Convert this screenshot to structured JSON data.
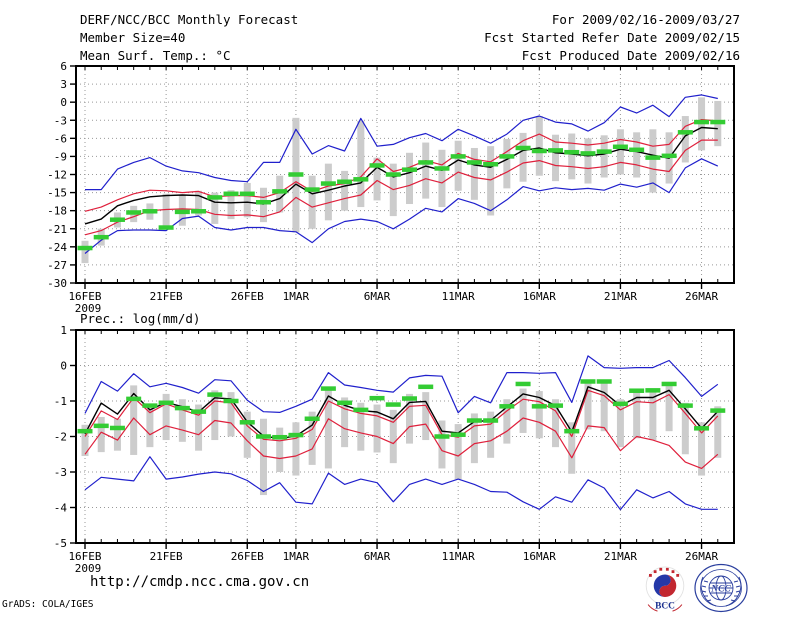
{
  "header": {
    "title": "DERF/NCC/BCC Monthly Forecast",
    "member_size": "Member Size=40",
    "for_range": "For 2009/02/16-2009/03/27",
    "refer_date": "Fcst Started Refer Date 2009/02/15",
    "produced_date": "Fcst Produced Date 2009/02/16"
  },
  "footer": {
    "url": "http://cmdp.ncc.cma.gov.cn",
    "credit": "GrADS: COLA/IGES",
    "logos": [
      {
        "name": "bcc-logo",
        "label": "BCC"
      },
      {
        "name": "ncc-logo",
        "label": "NCC"
      }
    ]
  },
  "colors": {
    "line_blue": "#2020cc",
    "line_red": "#df203c",
    "line_black": "#000000",
    "obs_green": "#33cc33",
    "bar_gray": "#cccccc",
    "grid": "#999999",
    "frame": "#000000"
  },
  "chart_data": [
    {
      "type": "line",
      "title": "Mean Surf. Temp.: °C",
      "xlabel": "",
      "ylabel": "",
      "ylim": [
        -30,
        6
      ],
      "yticks": [
        6,
        3,
        0,
        -3,
        -6,
        -9,
        -12,
        -15,
        -18,
        -21,
        -24,
        -27,
        -30
      ],
      "x_count": 40,
      "xticks": [
        {
          "day": 0,
          "label": "16FEB",
          "sub": "2009"
        },
        {
          "day": 5,
          "label": "21FEB"
        },
        {
          "day": 10,
          "label": "26FEB"
        },
        {
          "day": 13,
          "label": "1MAR"
        },
        {
          "day": 18,
          "label": "6MAR"
        },
        {
          "day": 23,
          "label": "11MAR"
        },
        {
          "day": 28,
          "label": "16MAR"
        },
        {
          "day": 33,
          "label": "21MAR"
        },
        {
          "day": 38,
          "label": "26MAR"
        }
      ],
      "grid": true,
      "legend": "none",
      "series": [
        {
          "name": "ensemble-max",
          "color_key": "line_blue",
          "values": [
            -14.5,
            -14.5,
            -11.1,
            -10.0,
            -9.2,
            -10.6,
            -11.4,
            -11.7,
            -12.5,
            -13.0,
            -13.2,
            -10.0,
            -10.0,
            -4.5,
            -8.6,
            -7.2,
            -8.1,
            -2.7,
            -7.3,
            -7.0,
            -5.9,
            -5.2,
            -6.4,
            -4.5,
            -5.6,
            -6.8,
            -5.3,
            -3.0,
            -2.3,
            -3.3,
            -3.6,
            -4.8,
            -3.4,
            -0.8,
            -1.8,
            -0.5,
            -2.4,
            0.8,
            1.2,
            0.6
          ]
        },
        {
          "name": "spread-upper",
          "color_key": "line_red",
          "values": [
            -18.1,
            -17.4,
            -16.2,
            -15.2,
            -14.6,
            -14.7,
            -15.0,
            -14.8,
            -15.7,
            -15.5,
            -15.5,
            -15.8,
            -15.0,
            -13.2,
            -14.8,
            -13.9,
            -13.5,
            -12.4,
            -9.4,
            -11.5,
            -10.8,
            -9.7,
            -10.4,
            -8.5,
            -9.5,
            -9.9,
            -8.2,
            -6.4,
            -5.3,
            -6.6,
            -6.8,
            -7.1,
            -6.8,
            -6.2,
            -6.6,
            -7.3,
            -7.0,
            -4.0,
            -2.9,
            -3.1
          ]
        },
        {
          "name": "ensemble-mean",
          "color_key": "line_black",
          "values": [
            -20.2,
            -19.4,
            -17.2,
            -16.3,
            -15.7,
            -15.5,
            -15.4,
            -15.5,
            -16.6,
            -16.7,
            -16.6,
            -16.9,
            -16.0,
            -13.6,
            -15.2,
            -14.6,
            -13.9,
            -13.4,
            -10.8,
            -12.4,
            -11.7,
            -10.6,
            -11.3,
            -9.6,
            -10.4,
            -10.8,
            -9.5,
            -8.0,
            -7.6,
            -8.4,
            -8.6,
            -8.9,
            -8.6,
            -7.8,
            -8.2,
            -8.8,
            -9.3,
            -5.6,
            -4.2,
            -4.4
          ]
        },
        {
          "name": "spread-lower",
          "color_key": "line_red",
          "values": [
            -22.0,
            -21.3,
            -19.9,
            -19.0,
            -18.0,
            -17.8,
            -17.7,
            -17.8,
            -18.6,
            -18.8,
            -18.7,
            -19.0,
            -18.2,
            -15.8,
            -17.4,
            -16.7,
            -16.0,
            -15.4,
            -13.0,
            -14.5,
            -13.8,
            -12.7,
            -13.4,
            -11.6,
            -12.5,
            -12.9,
            -11.6,
            -10.1,
            -9.7,
            -10.5,
            -10.7,
            -11.0,
            -10.7,
            -10.0,
            -10.4,
            -11.1,
            -11.5,
            -8.0,
            -6.3,
            -6.3
          ]
        },
        {
          "name": "ensemble-min",
          "color_key": "line_blue",
          "values": [
            -25.1,
            -22.9,
            -21.3,
            -21.2,
            -21.2,
            -21.3,
            -19.3,
            -18.9,
            -20.8,
            -21.2,
            -20.8,
            -20.8,
            -21.3,
            -21.5,
            -23.3,
            -21.0,
            -19.8,
            -19.4,
            -19.8,
            -21.0,
            -19.4,
            -17.6,
            -18.2,
            -16.0,
            -16.8,
            -18.0,
            -16.2,
            -14.0,
            -14.7,
            -14.2,
            -14.5,
            -14.3,
            -14.6,
            -13.6,
            -14.1,
            -13.4,
            -15.0,
            -10.9,
            -9.4,
            -10.6
          ]
        },
        {
          "name": "observation",
          "color_key": "obs_green",
          "style": "dashes",
          "values": [
            -24.2,
            -22.4,
            -19.5,
            -18.3,
            -18.1,
            -20.8,
            -18.2,
            -18.1,
            -15.8,
            -15.2,
            -15.2,
            -16.6,
            -14.8,
            -12.0,
            -14.5,
            -13.5,
            -13.2,
            -12.8,
            -10.5,
            -12.0,
            -11.2,
            -10.0,
            -11.0,
            -9.0,
            -10.0,
            -10.3,
            -9.0,
            -7.6,
            -8.1,
            -8.0,
            -8.3,
            -8.5,
            -8.2,
            -7.4,
            -7.9,
            -9.2,
            -8.9,
            -5.0,
            -3.3,
            -3.3
          ]
        }
      ],
      "bars": {
        "name": "member-spread-bar",
        "color_key": "bar_gray",
        "ranges": [
          [
            -26.7,
            -23.0
          ],
          [
            -23.8,
            -21.0
          ],
          [
            -20.8,
            -18.3
          ],
          [
            -19.9,
            -17.2
          ],
          [
            -19.5,
            -16.8
          ],
          [
            -21.0,
            -15.2
          ],
          [
            -20.5,
            -15.5
          ],
          [
            -18.8,
            -14.7
          ],
          [
            -20.2,
            -15.0
          ],
          [
            -19.4,
            -14.6
          ],
          [
            -19.1,
            -13.4
          ],
          [
            -19.9,
            -14.2
          ],
          [
            -18.3,
            -12.2
          ],
          [
            -21.6,
            -2.6
          ],
          [
            -21.0,
            -12.2
          ],
          [
            -19.6,
            -10.2
          ],
          [
            -18.0,
            -11.4
          ],
          [
            -17.4,
            -3.1
          ],
          [
            -16.3,
            -9.2
          ],
          [
            -18.9,
            -10.2
          ],
          [
            -16.9,
            -8.4
          ],
          [
            -16.0,
            -6.7
          ],
          [
            -17.4,
            -7.9
          ],
          [
            -14.7,
            -6.4
          ],
          [
            -16.2,
            -7.6
          ],
          [
            -18.8,
            -7.3
          ],
          [
            -14.3,
            -6.1
          ],
          [
            -13.2,
            -5.1
          ],
          [
            -12.2,
            -2.3
          ],
          [
            -13.1,
            -5.4
          ],
          [
            -12.8,
            -5.2
          ],
          [
            -13.5,
            -6.0
          ],
          [
            -12.5,
            -5.5
          ],
          [
            -12.0,
            -4.5
          ],
          [
            -12.5,
            -5.0
          ],
          [
            -15.0,
            -4.5
          ],
          [
            -13.5,
            -5.0
          ],
          [
            -10.0,
            -2.3
          ],
          [
            -8.0,
            0.8
          ],
          [
            -7.3,
            0.2
          ]
        ]
      }
    },
    {
      "type": "line",
      "title": "Prec.: log(mm/d)",
      "xlabel": "",
      "ylabel": "",
      "ylim": [
        -5,
        1
      ],
      "yticks": [
        1,
        0,
        -1,
        -2,
        -3,
        -4,
        -5
      ],
      "x_count": 40,
      "xticks": [
        {
          "day": 0,
          "label": "16FEB",
          "sub": "2009"
        },
        {
          "day": 5,
          "label": "21FEB"
        },
        {
          "day": 10,
          "label": "26FEB"
        },
        {
          "day": 13,
          "label": "1MAR"
        },
        {
          "day": 18,
          "label": "6MAR"
        },
        {
          "day": 23,
          "label": "11MAR"
        },
        {
          "day": 28,
          "label": "16MAR"
        },
        {
          "day": 33,
          "label": "21MAR"
        },
        {
          "day": 38,
          "label": "26MAR"
        }
      ],
      "grid": true,
      "legend": "none",
      "series": [
        {
          "name": "ensemble-max",
          "color_key": "line_blue",
          "values": [
            -1.35,
            -0.45,
            -0.72,
            -0.23,
            -0.6,
            -0.5,
            -0.62,
            -0.78,
            -0.4,
            -0.43,
            -0.98,
            -1.3,
            -1.32,
            -1.15,
            -0.95,
            -0.2,
            -0.55,
            -0.62,
            -0.7,
            -0.75,
            -0.35,
            -0.28,
            -0.3,
            -1.33,
            -0.87,
            -1.05,
            -0.2,
            -0.2,
            -0.22,
            -0.2,
            -1.04,
            0.27,
            -0.06,
            -0.08,
            -0.06,
            -0.06,
            0.14,
            -0.34,
            -0.87,
            -0.53
          ]
        },
        {
          "name": "spread-upper",
          "color_key": "line_red",
          "values": [
            -2.0,
            -1.28,
            -1.52,
            -0.9,
            -1.33,
            -1.08,
            -1.25,
            -1.4,
            -1.0,
            -1.05,
            -1.7,
            -2.08,
            -2.12,
            -2.05,
            -1.8,
            -1.0,
            -1.22,
            -1.35,
            -1.42,
            -1.6,
            -1.15,
            -1.12,
            -1.95,
            -2.02,
            -1.7,
            -1.65,
            -1.28,
            -0.95,
            -1.02,
            -1.28,
            -2.0,
            -0.7,
            -0.85,
            -1.25,
            -1.02,
            -1.05,
            -0.82,
            -1.35,
            -1.9,
            -1.42
          ]
        },
        {
          "name": "ensemble-mean",
          "color_key": "line_black",
          "values": [
            -1.93,
            -1.06,
            -1.37,
            -0.79,
            -1.25,
            -1.04,
            -1.16,
            -1.31,
            -0.91,
            -0.94,
            -1.59,
            -1.99,
            -2.06,
            -1.99,
            -1.68,
            -0.86,
            -1.12,
            -1.27,
            -1.31,
            -1.5,
            -1.04,
            -1.01,
            -1.85,
            -1.9,
            -1.58,
            -1.55,
            -1.17,
            -0.8,
            -0.9,
            -1.13,
            -1.87,
            -0.6,
            -0.76,
            -1.13,
            -0.9,
            -0.9,
            -0.7,
            -1.22,
            -1.77,
            -1.29
          ]
        },
        {
          "name": "spread-lower",
          "color_key": "line_red",
          "values": [
            -2.5,
            -1.88,
            -2.1,
            -1.48,
            -1.95,
            -1.7,
            -1.82,
            -1.95,
            -1.55,
            -1.62,
            -2.12,
            -2.55,
            -2.62,
            -2.55,
            -2.35,
            -1.5,
            -1.78,
            -1.9,
            -2.0,
            -2.2,
            -1.72,
            -1.65,
            -2.4,
            -2.55,
            -2.2,
            -2.12,
            -1.85,
            -1.48,
            -1.6,
            -1.85,
            -2.6,
            -1.7,
            -1.75,
            -2.4,
            -2.0,
            -2.1,
            -2.25,
            -2.72,
            -2.9,
            -2.5
          ]
        },
        {
          "name": "ensemble-min",
          "color_key": "line_blue",
          "values": [
            -3.5,
            -3.15,
            -3.2,
            -3.25,
            -2.57,
            -3.2,
            -3.14,
            -3.06,
            -3.0,
            -3.05,
            -3.24,
            -3.55,
            -3.3,
            -3.85,
            -3.9,
            -3.03,
            -3.35,
            -3.2,
            -3.3,
            -3.84,
            -3.35,
            -3.2,
            -3.35,
            -3.2,
            -3.35,
            -3.55,
            -3.57,
            -3.84,
            -4.05,
            -3.7,
            -3.85,
            -3.22,
            -3.45,
            -4.06,
            -3.5,
            -3.73,
            -3.55,
            -3.9,
            -4.05,
            -4.05
          ]
        },
        {
          "name": "observation",
          "color_key": "obs_green",
          "style": "dashes",
          "values": [
            -1.85,
            -1.7,
            -1.76,
            -0.94,
            -1.13,
            -1.05,
            -1.2,
            -1.3,
            -0.82,
            -1.0,
            -1.6,
            -2.0,
            -2.02,
            -1.96,
            -1.5,
            -0.65,
            -1.05,
            -1.25,
            -0.92,
            -1.1,
            -0.93,
            -0.6,
            -2.0,
            -1.95,
            -1.55,
            -1.55,
            -1.15,
            -0.52,
            -1.15,
            -1.13,
            -1.85,
            -0.45,
            -0.45,
            -1.08,
            -0.71,
            -0.7,
            -0.52,
            -1.13,
            -1.77,
            -1.27
          ]
        }
      ],
      "bars": {
        "name": "member-spread-bar",
        "color_key": "bar_gray",
        "ranges": [
          [
            -2.55,
            -1.67
          ],
          [
            -2.44,
            -1.45
          ],
          [
            -2.4,
            -1.5
          ],
          [
            -2.52,
            -0.56
          ],
          [
            -2.3,
            -1.2
          ],
          [
            -2.1,
            -0.8
          ],
          [
            -2.15,
            -0.95
          ],
          [
            -2.4,
            -1.1
          ],
          [
            -2.1,
            -0.7
          ],
          [
            -2.0,
            -0.75
          ],
          [
            -2.6,
            -1.3
          ],
          [
            -3.65,
            -1.5
          ],
          [
            -3.0,
            -1.75
          ],
          [
            -3.1,
            -1.6
          ],
          [
            -2.8,
            -1.3
          ],
          [
            -2.9,
            -0.6
          ],
          [
            -2.3,
            -0.9
          ],
          [
            -2.4,
            -1.05
          ],
          [
            -2.45,
            -1.1
          ],
          [
            -2.75,
            -1.25
          ],
          [
            -2.2,
            -0.8
          ],
          [
            -2.1,
            -0.75
          ],
          [
            -2.9,
            -1.55
          ],
          [
            -3.2,
            -1.65
          ],
          [
            -2.75,
            -1.35
          ],
          [
            -2.6,
            -1.3
          ],
          [
            -2.2,
            -0.95
          ],
          [
            -1.9,
            -0.65
          ],
          [
            -2.05,
            -0.72
          ],
          [
            -2.3,
            -0.95
          ],
          [
            -3.05,
            -1.6
          ],
          [
            -1.8,
            -0.42
          ],
          [
            -1.85,
            -0.48
          ],
          [
            -2.3,
            -0.95
          ],
          [
            -2.05,
            -0.72
          ],
          [
            -2.1,
            -0.75
          ],
          [
            -1.85,
            -0.52
          ],
          [
            -2.5,
            -1.05
          ],
          [
            -3.1,
            -1.6
          ],
          [
            -2.6,
            -1.15
          ]
        ]
      }
    }
  ]
}
